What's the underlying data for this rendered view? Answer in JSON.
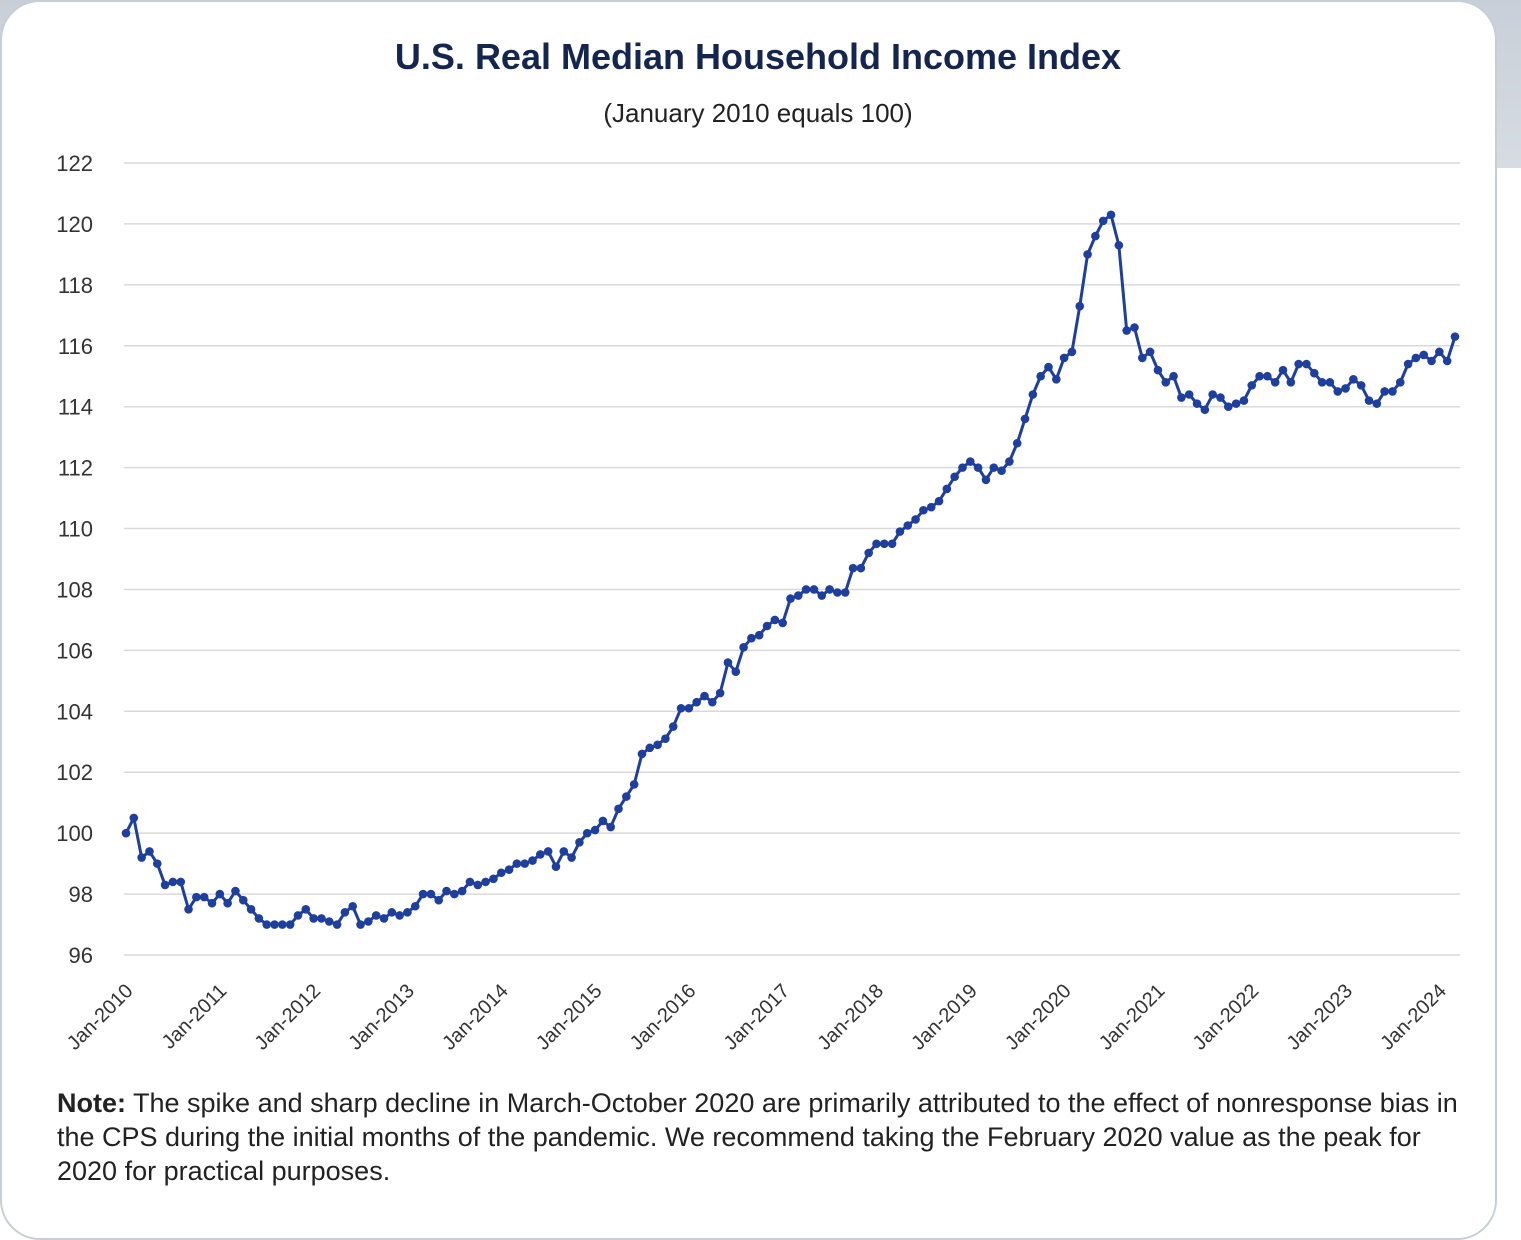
{
  "chart_data": {
    "type": "line",
    "title": "U.S. Real Median Household Income Index",
    "subtitle": "(January 2010 equals 100)",
    "xlabel": "",
    "ylabel": "",
    "ylim": [
      96,
      122
    ],
    "yticks": [
      96,
      98,
      100,
      102,
      104,
      106,
      108,
      110,
      112,
      114,
      116,
      118,
      120,
      122
    ],
    "xtick_labels": [
      "Jan-2010",
      "Jan-2011",
      "Jan-2012",
      "Jan-2013",
      "Jan-2014",
      "Jan-2015",
      "Jan-2016",
      "Jan-2017",
      "Jan-2018",
      "Jan-2019",
      "Jan-2020",
      "Jan-2021",
      "Jan-2022",
      "Jan-2023",
      "Jan-2024"
    ],
    "grid": true,
    "legend": "none",
    "start_month": "Jan-2010",
    "series": [
      {
        "color": "#1f3f9f",
        "values": [
          100.0,
          100.5,
          99.2,
          99.4,
          99.0,
          98.3,
          98.4,
          98.4,
          97.5,
          97.9,
          97.9,
          97.7,
          98.0,
          97.7,
          98.1,
          97.8,
          97.5,
          97.2,
          97.0,
          97.0,
          97.0,
          97.0,
          97.3,
          97.5,
          97.2,
          97.2,
          97.1,
          97.0,
          97.4,
          97.6,
          97.0,
          97.1,
          97.3,
          97.2,
          97.4,
          97.3,
          97.4,
          97.6,
          98.0,
          98.0,
          97.8,
          98.1,
          98.0,
          98.1,
          98.4,
          98.3,
          98.4,
          98.5,
          98.7,
          98.8,
          99.0,
          99.0,
          99.1,
          99.3,
          99.4,
          98.9,
          99.4,
          99.2,
          99.7,
          100.0,
          100.1,
          100.4,
          100.2,
          100.8,
          101.2,
          101.6,
          102.6,
          102.8,
          102.9,
          103.1,
          103.5,
          104.1,
          104.1,
          104.3,
          104.5,
          104.3,
          104.6,
          105.6,
          105.3,
          106.1,
          106.4,
          106.5,
          106.8,
          107.0,
          106.9,
          107.7,
          107.8,
          108.0,
          108.0,
          107.8,
          108.0,
          107.9,
          107.9,
          108.7,
          108.7,
          109.2,
          109.5,
          109.5,
          109.5,
          109.9,
          110.1,
          110.3,
          110.6,
          110.7,
          110.9,
          111.3,
          111.7,
          112.0,
          112.2,
          112.0,
          111.6,
          112.0,
          111.9,
          112.2,
          112.8,
          113.6,
          114.4,
          115.0,
          115.3,
          114.9,
          115.6,
          115.8,
          117.3,
          119.0,
          119.6,
          120.1,
          120.3,
          119.3,
          116.5,
          116.6,
          115.6,
          115.8,
          115.2,
          114.8,
          115.0,
          114.3,
          114.4,
          114.1,
          113.9,
          114.4,
          114.3,
          114.0,
          114.1,
          114.2,
          114.7,
          115.0,
          115.0,
          114.8,
          115.2,
          114.8,
          115.4,
          115.4,
          115.1,
          114.8,
          114.8,
          114.5,
          114.6,
          114.9,
          114.7,
          114.2,
          114.1,
          114.5,
          114.5,
          114.8,
          115.4,
          115.6,
          115.7,
          115.5,
          115.8,
          115.5,
          116.3
        ]
      }
    ]
  },
  "note": {
    "label": "Note:",
    "text": " The spike and sharp decline in March-October 2020 are primarily attributed to the effect of nonresponse bias in the CPS during the initial months of the pandemic. We recommend taking the February 2020 value as the peak for 2020 for practical purposes."
  }
}
